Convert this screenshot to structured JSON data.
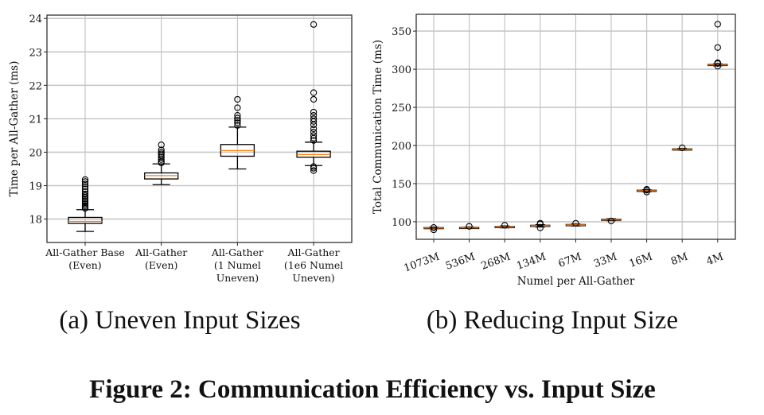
{
  "figure_caption": "Figure 2: Communication Efficiency vs. Input Size",
  "colors": {
    "median": "#ff7f0e",
    "median_dark": "#c0651a",
    "grid": "#c8c8c8",
    "box": "#000000"
  },
  "chart_data": [
    {
      "type": "box",
      "subcaption": "(a) Uneven Input Sizes",
      "xlabel": "",
      "ylabel": "Time per All-Gather (ms)",
      "ylim": [
        17.3,
        24.1
      ],
      "yticks": [
        "18",
        "19",
        "20",
        "21",
        "22",
        "23",
        "24"
      ],
      "grid": true,
      "categories": [
        [
          "All-Gather Base",
          "(Even)"
        ],
        [
          "All-Gather",
          "(Even)"
        ],
        [
          "All-Gather",
          "(1 Numel",
          "Uneven)"
        ],
        [
          "All-Gather",
          "(1e6 Numel",
          "Uneven)"
        ]
      ],
      "boxes": [
        {
          "whislo": 17.63,
          "q1": 17.87,
          "med": 17.93,
          "q3": 18.05,
          "whishi": 18.28,
          "fliers": [
            18.32,
            18.36,
            18.4,
            18.45,
            18.5,
            18.55,
            18.6,
            18.65,
            18.7,
            18.75,
            18.82,
            18.9,
            18.97,
            19.05,
            19.12,
            19.18
          ]
        },
        {
          "whislo": 19.03,
          "q1": 19.2,
          "med": 19.3,
          "q3": 19.38,
          "whishi": 19.65,
          "fliers": [
            19.68,
            19.72,
            19.78,
            19.85,
            19.9,
            19.95,
            20.0,
            20.07,
            20.22
          ]
        },
        {
          "whislo": 19.5,
          "q1": 19.88,
          "med": 20.05,
          "q3": 20.23,
          "whishi": 20.75,
          "fliers": [
            20.8,
            20.88,
            20.95,
            21.02,
            21.1,
            21.33,
            21.58
          ]
        },
        {
          "whislo": 19.6,
          "q1": 19.85,
          "med": 19.93,
          "q3": 20.03,
          "whishi": 20.3,
          "fliers": [
            19.45,
            19.52,
            19.57,
            20.35,
            20.42,
            20.5,
            20.6,
            20.7,
            20.82,
            20.92,
            21.0,
            21.1,
            21.2,
            21.58,
            21.78,
            23.82
          ]
        }
      ]
    },
    {
      "type": "box",
      "subcaption": "(b) Reducing Input Size",
      "xlabel": "Numel per All-Gather",
      "ylabel": "Total Communication Time (ms)",
      "ylim": [
        77,
        372
      ],
      "yticks": [
        "100",
        "150",
        "200",
        "250",
        "300",
        "350"
      ],
      "grid": true,
      "categories": [
        "1073M",
        "536M",
        "268M",
        "134M",
        "67M",
        "33M",
        "16M",
        "8M",
        "4M"
      ],
      "boxes": [
        {
          "whislo": 91,
          "q1": 91.5,
          "med": 92,
          "q3": 92.5,
          "whishi": 93,
          "fliers": [
            89.5,
            92.5
          ]
        },
        {
          "whislo": 91.2,
          "q1": 91.6,
          "med": 92.2,
          "q3": 92.7,
          "whishi": 93.2,
          "fliers": [
            94
          ]
        },
        {
          "whislo": 92,
          "q1": 92.6,
          "med": 93.2,
          "q3": 93.8,
          "whishi": 94.5,
          "fliers": [
            95.5
          ]
        },
        {
          "whislo": 93.2,
          "q1": 94,
          "med": 94.7,
          "q3": 95.4,
          "whishi": 96.2,
          "fliers": [
            92,
            97,
            98
          ]
        },
        {
          "whislo": 94.5,
          "q1": 95.2,
          "med": 95.8,
          "q3": 96.4,
          "whishi": 97,
          "fliers": [
            98
          ]
        },
        {
          "whislo": 101.5,
          "q1": 102.2,
          "med": 102.8,
          "q3": 103.4,
          "whishi": 104,
          "fliers": [
            101
          ]
        },
        {
          "whislo": 139.5,
          "q1": 140.2,
          "med": 140.8,
          "q3": 141.4,
          "whishi": 142,
          "fliers": [
            139,
            141.5,
            142.5
          ]
        },
        {
          "whislo": 194,
          "q1": 194.6,
          "med": 195.1,
          "q3": 195.6,
          "whishi": 196.2,
          "fliers": [
            197
          ]
        },
        {
          "whislo": 304.5,
          "q1": 305.2,
          "med": 305.8,
          "q3": 306.4,
          "whishi": 307,
          "fliers": [
            304,
            307.5,
            308.5,
            328.5,
            359
          ]
        }
      ]
    }
  ]
}
